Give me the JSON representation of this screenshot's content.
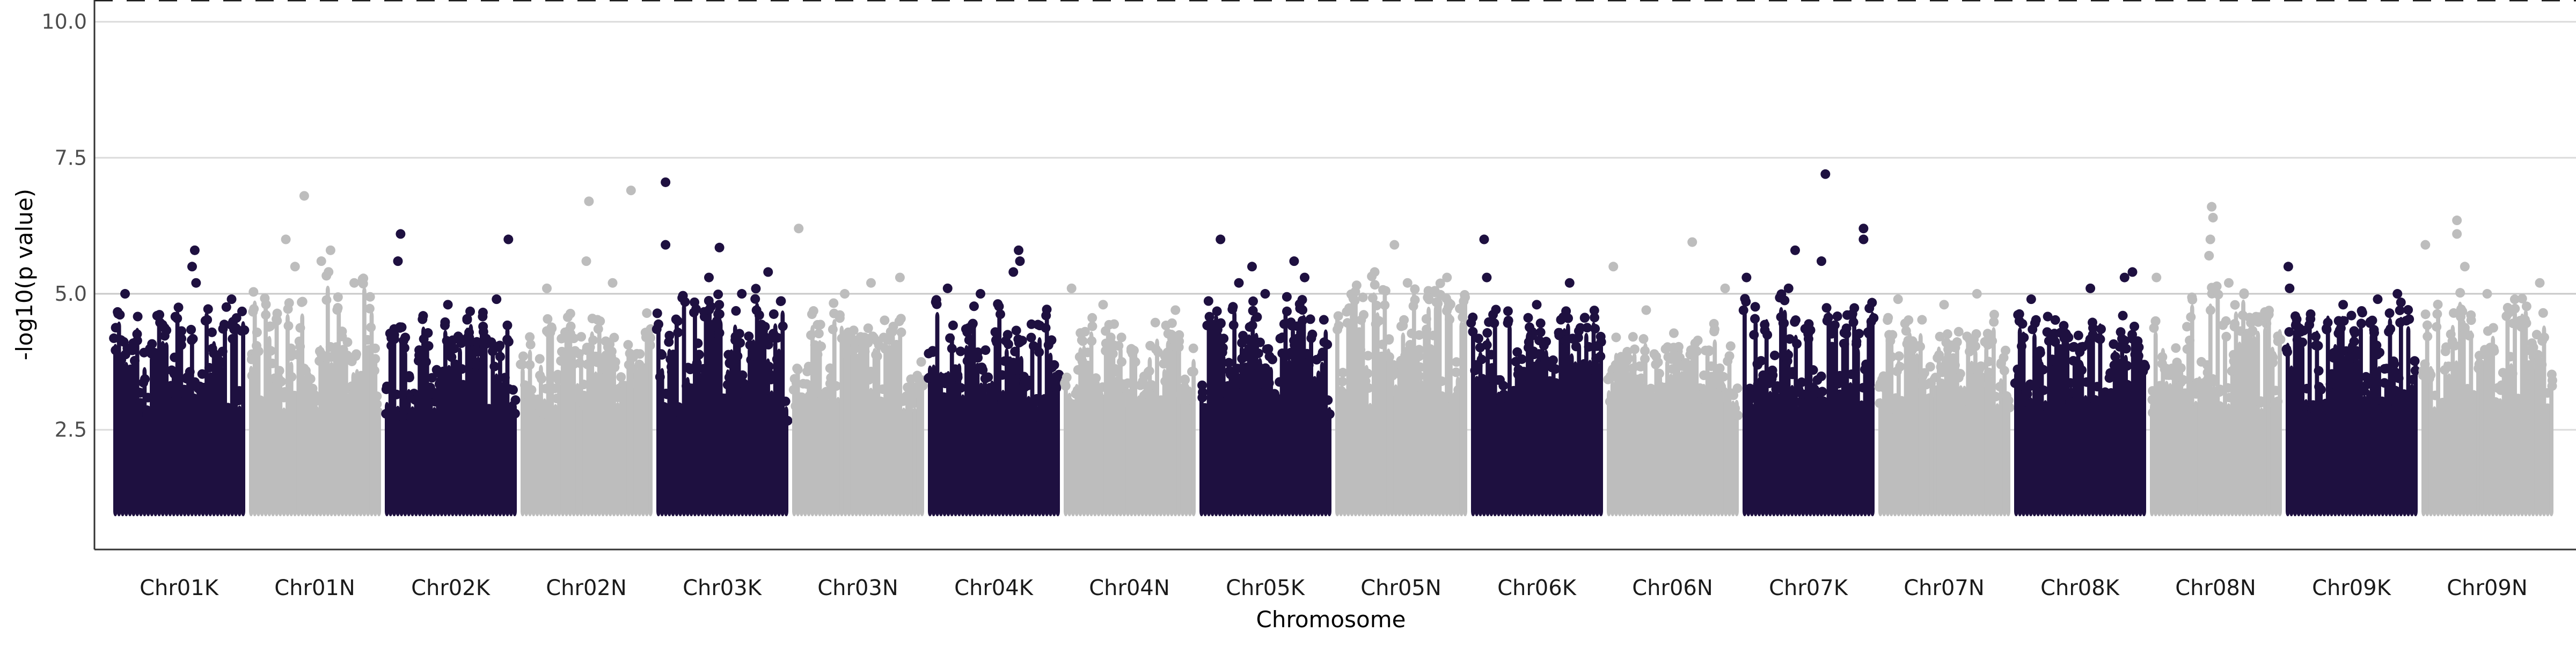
{
  "chart_data": {
    "type": "scatter",
    "title": "",
    "xlabel": "Chromosome",
    "ylabel": "-log10(p value)",
    "ylim": [
      0.3,
      10.4
    ],
    "y_ticks": [
      2.5,
      5.0,
      7.5,
      10.0
    ],
    "y_tick_labels": [
      "2.5",
      "5.0",
      "7.5",
      "10.0"
    ],
    "grid": "horizontal major",
    "threshold_lines": [
      {
        "y": 5.0,
        "style": "solid",
        "color": "#c8c8c8"
      },
      {
        "y": 10.4,
        "style": "dashed",
        "color": "#1a1a1a"
      }
    ],
    "colors": {
      "odd": "#1e1040",
      "even": "#bdbdbd"
    },
    "point_floor": 1.0,
    "chromosomes": [
      {
        "name": "Chr01K",
        "base_max": 4.7,
        "peaks": [
          [
            0.62,
            5.8
          ],
          [
            0.6,
            5.5
          ],
          [
            0.63,
            5.2
          ],
          [
            0.09,
            5.0
          ],
          [
            0.9,
            4.9
          ]
        ]
      },
      {
        "name": "Chr01N",
        "base_max": 5.3,
        "peaks": [
          [
            0.42,
            6.8
          ],
          [
            0.28,
            6.0
          ],
          [
            0.62,
            5.8
          ],
          [
            0.55,
            5.6
          ],
          [
            0.35,
            5.5
          ],
          [
            0.8,
            5.2
          ]
        ]
      },
      {
        "name": "Chr02K",
        "base_max": 4.5,
        "peaks": [
          [
            0.12,
            6.1
          ],
          [
            0.94,
            6.0
          ],
          [
            0.1,
            5.6
          ],
          [
            0.48,
            4.8
          ],
          [
            0.85,
            4.9
          ]
        ]
      },
      {
        "name": "Chr02N",
        "base_max": 4.5,
        "peaks": [
          [
            0.52,
            6.7
          ],
          [
            0.84,
            6.9
          ],
          [
            0.5,
            5.6
          ],
          [
            0.7,
            5.2
          ],
          [
            0.2,
            5.1
          ]
        ]
      },
      {
        "name": "Chr03K",
        "base_max": 4.9,
        "peaks": [
          [
            0.07,
            7.05
          ],
          [
            0.07,
            5.9
          ],
          [
            0.48,
            5.85
          ],
          [
            0.4,
            5.3
          ],
          [
            0.85,
            5.4
          ],
          [
            0.65,
            5.0
          ]
        ]
      },
      {
        "name": "Chr03N",
        "base_max": 4.6,
        "peaks": [
          [
            0.05,
            6.2
          ],
          [
            0.82,
            5.3
          ],
          [
            0.6,
            5.2
          ],
          [
            0.4,
            5.0
          ]
        ]
      },
      {
        "name": "Chr04K",
        "base_max": 4.7,
        "peaks": [
          [
            0.69,
            5.8
          ],
          [
            0.7,
            5.6
          ],
          [
            0.15,
            5.1
          ],
          [
            0.65,
            5.4
          ],
          [
            0.4,
            5.0
          ]
        ]
      },
      {
        "name": "Chr04N",
        "base_max": 4.4,
        "peaks": [
          [
            0.06,
            5.1
          ],
          [
            0.3,
            4.8
          ],
          [
            0.85,
            4.7
          ]
        ]
      },
      {
        "name": "Chr05K",
        "base_max": 4.7,
        "peaks": [
          [
            0.16,
            6.0
          ],
          [
            0.4,
            5.5
          ],
          [
            0.3,
            5.2
          ],
          [
            0.72,
            5.6
          ],
          [
            0.8,
            5.3
          ],
          [
            0.5,
            5.0
          ]
        ]
      },
      {
        "name": "Chr05N",
        "base_max": 5.1,
        "peaks": [
          [
            0.45,
            5.9
          ],
          [
            0.3,
            5.4
          ],
          [
            0.85,
            5.3
          ],
          [
            0.55,
            5.2
          ]
        ]
      },
      {
        "name": "Chr06K",
        "base_max": 4.5,
        "peaks": [
          [
            0.1,
            6.0
          ],
          [
            0.12,
            5.3
          ],
          [
            0.75,
            5.2
          ],
          [
            0.5,
            4.8
          ]
        ]
      },
      {
        "name": "Chr06N",
        "base_max": 4.2,
        "peaks": [
          [
            0.05,
            5.5
          ],
          [
            0.65,
            5.95
          ],
          [
            0.9,
            5.1
          ],
          [
            0.3,
            4.7
          ]
        ]
      },
      {
        "name": "Chr07K",
        "base_max": 4.8,
        "peaks": [
          [
            0.63,
            7.2
          ],
          [
            0.92,
            6.2
          ],
          [
            0.92,
            6.0
          ],
          [
            0.4,
            5.8
          ],
          [
            0.6,
            5.6
          ],
          [
            0.03,
            5.3
          ],
          [
            0.35,
            5.1
          ]
        ]
      },
      {
        "name": "Chr07N",
        "base_max": 4.4,
        "peaks": [
          [
            0.15,
            4.9
          ],
          [
            0.5,
            4.8
          ],
          [
            0.75,
            5.0
          ]
        ]
      },
      {
        "name": "Chr08K",
        "base_max": 4.6,
        "peaks": [
          [
            0.13,
            4.9
          ],
          [
            0.58,
            5.1
          ],
          [
            0.9,
            5.4
          ],
          [
            0.84,
            5.3
          ]
        ]
      },
      {
        "name": "Chr08N",
        "base_max": 5.0,
        "peaks": [
          [
            0.47,
            6.6
          ],
          [
            0.48,
            6.4
          ],
          [
            0.46,
            6.0
          ],
          [
            0.45,
            5.7
          ],
          [
            0.05,
            5.3
          ],
          [
            0.6,
            5.2
          ]
        ]
      },
      {
        "name": "Chr09K",
        "base_max": 4.6,
        "peaks": [
          [
            0.02,
            5.5
          ],
          [
            0.03,
            5.1
          ],
          [
            0.85,
            5.0
          ],
          [
            0.7,
            4.9
          ],
          [
            0.5,
            4.6
          ]
        ]
      },
      {
        "name": "Chr09N",
        "base_max": 5.0,
        "peaks": [
          [
            0.27,
            6.35
          ],
          [
            0.27,
            6.1
          ],
          [
            0.03,
            5.9
          ],
          [
            0.33,
            5.5
          ],
          [
            0.9,
            5.2
          ],
          [
            0.5,
            5.0
          ]
        ]
      }
    ]
  }
}
